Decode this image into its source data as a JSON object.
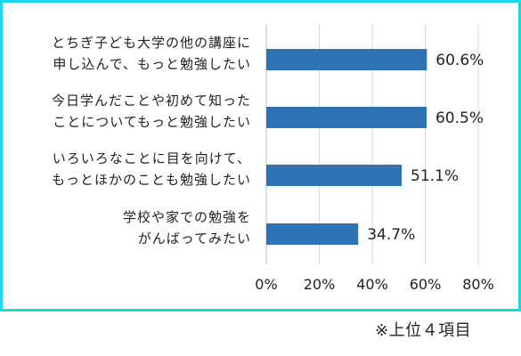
{
  "chart_data": {
    "type": "bar",
    "orientation": "horizontal",
    "categories": [
      [
        "とちぎ子ども大学の他の講座に",
        "申し込んで、もっと勉強したい"
      ],
      [
        "今日学んだことや初めて知った",
        "ことについてもっと勉強したい"
      ],
      [
        "いろいろなことに目を向けて、",
        "もっとほかのことも勉強したい"
      ],
      [
        "学校や家での勉強を",
        "がんばってみたい"
      ]
    ],
    "values": [
      60.6,
      60.5,
      51.1,
      34.7
    ],
    "value_labels": [
      "60.6%",
      "60.5%",
      "51.1%",
      "34.7%"
    ],
    "xlim": [
      0,
      80
    ],
    "x_ticks": [
      "0%",
      "20%",
      "40%",
      "60%",
      "80%"
    ],
    "gridlines": true,
    "bar_color": "#2e74b5",
    "grid_color": "#d9d9d9",
    "frame_color": "#19d9e6"
  },
  "note": "※上位４項目"
}
